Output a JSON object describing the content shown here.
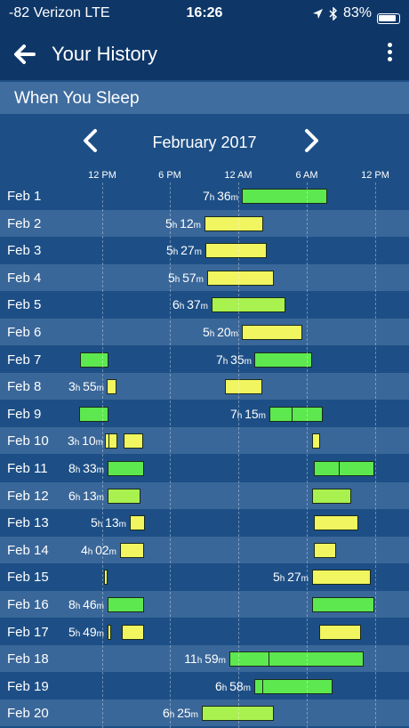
{
  "status_bar": {
    "carrier": "-82 Verizon  LTE",
    "time": "16:26",
    "battery": "83%"
  },
  "header": {
    "title": "Your History"
  },
  "section": {
    "title": "When You Sleep"
  },
  "calendar": {
    "month": "February 2017"
  },
  "axis": {
    "ticks": [
      "12 PM",
      "6 PM",
      "12 AM",
      "6 AM",
      "12 PM"
    ]
  },
  "rows": [
    {
      "date": "Feb 1",
      "h": "7",
      "m": "36"
    },
    {
      "date": "Feb 2",
      "h": "5",
      "m": "12"
    },
    {
      "date": "Feb 3",
      "h": "5",
      "m": "27"
    },
    {
      "date": "Feb 4",
      "h": "5",
      "m": "57"
    },
    {
      "date": "Feb 5",
      "h": "6",
      "m": "37"
    },
    {
      "date": "Feb 6",
      "h": "5",
      "m": "20"
    },
    {
      "date": "Feb 7",
      "h": "7",
      "m": "35"
    },
    {
      "date": "Feb 8",
      "h": "3",
      "m": "55"
    },
    {
      "date": "Feb 9",
      "h": "7",
      "m": "15"
    },
    {
      "date": "Feb 10",
      "h": "3",
      "m": "10"
    },
    {
      "date": "Feb 11",
      "h": "8",
      "m": "33"
    },
    {
      "date": "Feb 12",
      "h": "6",
      "m": "13"
    },
    {
      "date": "Feb 13",
      "h": "5",
      "m": "13"
    },
    {
      "date": "Feb 14",
      "h": "4",
      "m": "02"
    },
    {
      "date": "Feb 15",
      "h": "5",
      "m": "27"
    },
    {
      "date": "Feb 16",
      "h": "8",
      "m": "46"
    },
    {
      "date": "Feb 17",
      "h": "5",
      "m": "49"
    },
    {
      "date": "Feb 18",
      "h": "11",
      "m": "59"
    },
    {
      "date": "Feb 19",
      "h": "6",
      "m": "58"
    },
    {
      "date": "Feb 20",
      "h": "6",
      "m": "25"
    }
  ],
  "colors": {
    "yellow": "#f0f560",
    "green": "#5de84f",
    "lime": "#a9f14f"
  }
}
